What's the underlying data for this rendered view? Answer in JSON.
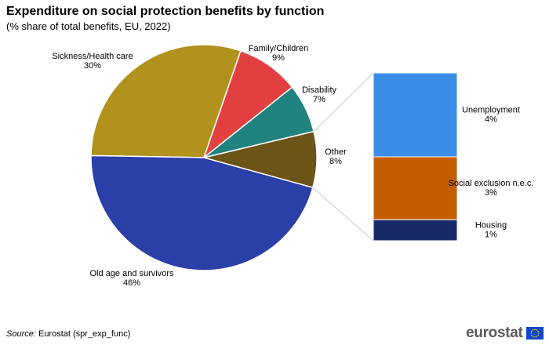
{
  "title": "Expenditure on social protection benefits by function",
  "subtitle": "(% share of total benefits, EU, 2022)",
  "source": {
    "label": "Source:",
    "text": " Eurostat (spr_exp_func)"
  },
  "logo": {
    "text": "eurostat",
    "icon": "eu-flag-icon"
  },
  "chart_data": {
    "type": "pie",
    "title": "Expenditure on social protection benefits by function",
    "subtitle": "(% share of total benefits, EU, 2022)",
    "unit": "%",
    "slices": [
      {
        "label": "Old age and survivors",
        "value": 46,
        "value_label": "46%",
        "color": "#2a3fa8"
      },
      {
        "label": "Sickness/Health care",
        "value": 30,
        "value_label": "30%",
        "color": "#b0921d"
      },
      {
        "label": "Family/Children",
        "value": 9,
        "value_label": "9%",
        "color": "#e24040"
      },
      {
        "label": "Disability",
        "value": 7,
        "value_label": "7%",
        "color": "#20837f"
      },
      {
        "label": "Other",
        "value": 8,
        "value_label": "8%",
        "color": "#6b5416"
      }
    ],
    "breakdown": {
      "of": "Other",
      "type": "stacked-bar",
      "segments": [
        {
          "label": "Unemployment",
          "value": 4,
          "value_label": "4%",
          "color": "#3b8ee6"
        },
        {
          "label": "Social exclusion n.e.c.",
          "value": 3,
          "value_label": "3%",
          "color": "#c35e00"
        },
        {
          "label": "Housing",
          "value": 1,
          "value_label": "1%",
          "color": "#172a67"
        }
      ]
    }
  }
}
